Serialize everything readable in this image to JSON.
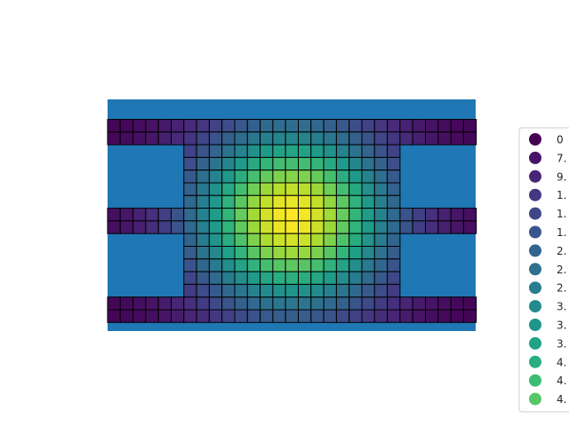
{
  "chart_data": {
    "type": "heatmap",
    "title": "",
    "xlabel": "",
    "ylabel": "",
    "axes_visible": false,
    "background_color": "#1f77b4",
    "colormap": "viridis",
    "cell_edge_color": "#000000",
    "grid_columns": 29,
    "grid_rows": 15,
    "vmin": 0,
    "vmax": 4.9,
    "active_column_range": [
      6,
      22
    ],
    "bands": [
      {
        "row_start": 0,
        "row_end": 1,
        "x_span": "full"
      },
      {
        "row_start": 7,
        "row_end": 8,
        "x_span": "full"
      },
      {
        "row_start": 14,
        "row_end": 15,
        "x_span": "full"
      },
      {
        "row_start": 2,
        "row_end": 13,
        "x_span": "center"
      }
    ],
    "center": {
      "col": 14.0,
      "row": 7.2
    },
    "legend": {
      "placement": "right",
      "labels": [
        "0",
        "7.",
        "9.",
        "1.",
        "1.",
        "1.",
        "2.",
        "2.",
        "2.",
        "3.",
        "3.",
        "3.",
        "4.",
        "4.",
        "4."
      ],
      "colors": [
        "#440154",
        "#481467",
        "#482576",
        "#453781",
        "#3f4788",
        "#39558c",
        "#32648e",
        "#2d718e",
        "#287d8e",
        "#238a8d",
        "#1f968b",
        "#20a386",
        "#29af7f",
        "#3dbc74",
        "#56c667"
      ]
    }
  }
}
